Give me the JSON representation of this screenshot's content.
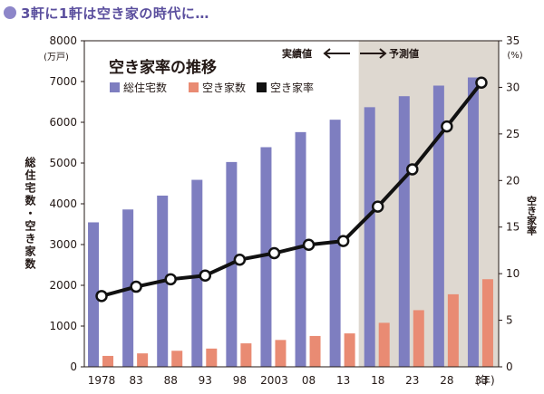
{
  "header": {
    "title": "3軒に1軒は空き家の時代に…"
  },
  "chart_data": {
    "type": "bar",
    "title": "空き家率の推移",
    "categories": [
      "1978",
      "83",
      "88",
      "93",
      "98",
      "2003",
      "08",
      "13",
      "18",
      "23",
      "28",
      "33"
    ],
    "x_unit": "(年)",
    "series": [
      {
        "name": "総住宅数",
        "axis": "left",
        "kind": "bar",
        "color": "#7e7ec0",
        "values": [
          3545,
          3861,
          4201,
          4588,
          5025,
          5389,
          5759,
          6063,
          6370,
          6640,
          6900,
          7100
        ]
      },
      {
        "name": "空き家数",
        "axis": "left",
        "kind": "bar",
        "color": "#e98b73",
        "values": [
          268,
          330,
          394,
          448,
          576,
          659,
          757,
          820,
          1080,
          1390,
          1780,
          2150
        ]
      },
      {
        "name": "空き家率",
        "axis": "right",
        "kind": "line",
        "color": "#111111",
        "values": [
          7.6,
          8.6,
          9.4,
          9.8,
          11.5,
          12.2,
          13.1,
          13.5,
          17.2,
          21.2,
          25.8,
          30.5
        ]
      }
    ],
    "y_left": {
      "label": "総住宅数・空き家数",
      "unit": "(万戸)",
      "min": 0,
      "max": 8000,
      "ticks": [
        "0",
        "1000",
        "2000",
        "3000",
        "4000",
        "5000",
        "6000",
        "7000",
        "8000"
      ]
    },
    "y_right": {
      "label": "空き家率",
      "unit": "(%)",
      "min": 0,
      "max": 35,
      "ticks": [
        "0",
        "5",
        "10",
        "15",
        "20",
        "25",
        "30",
        "35"
      ]
    },
    "forecast_start_index": 8,
    "forecast_color": "#ded8d0",
    "labels": {
      "actual": "実績値",
      "forecast": "予測値"
    },
    "legend_position": "top-left"
  }
}
